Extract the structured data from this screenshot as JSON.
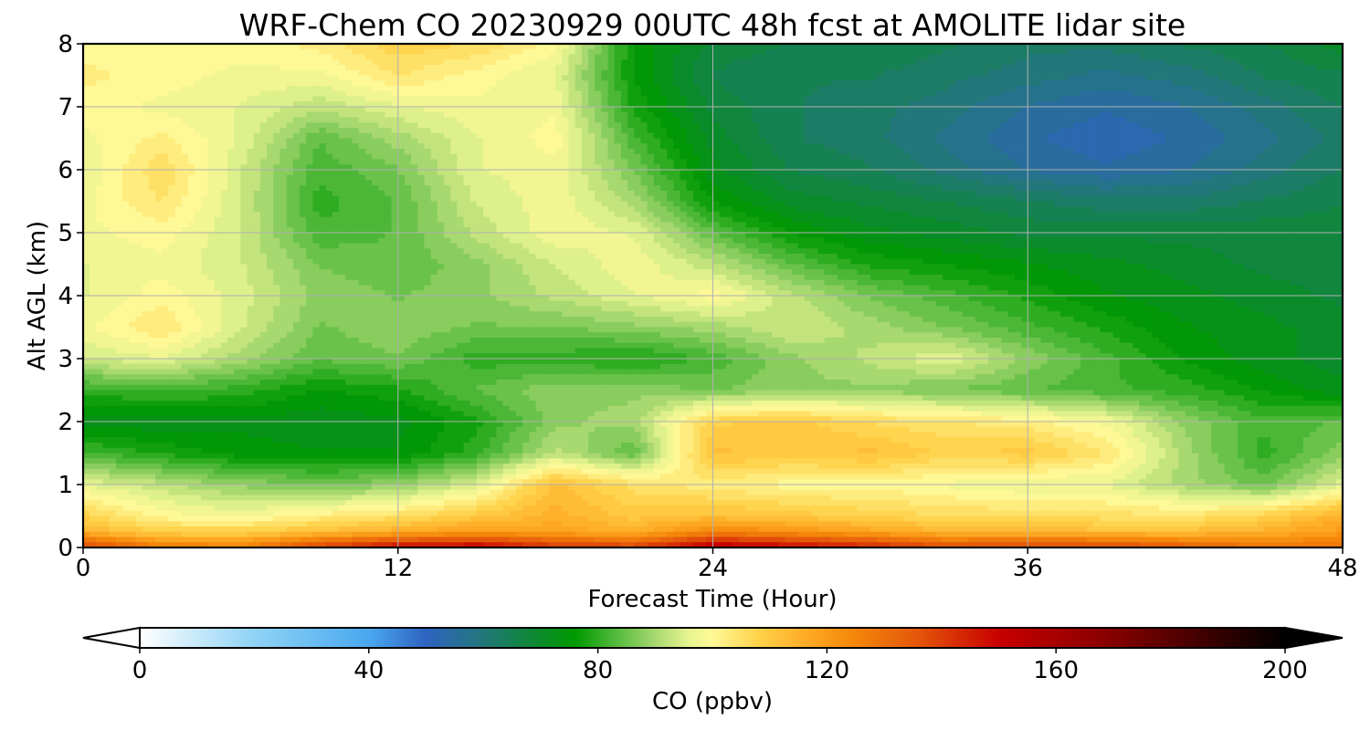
{
  "chart_data": {
    "type": "heatmap",
    "title": "WRF-Chem CO  20230929 00UTC 48h fcst at AMOLITE lidar site",
    "xlabel": "Forecast Time (Hour)",
    "ylabel": "Alt AGL (km)",
    "xlim": [
      0,
      48
    ],
    "ylim": [
      0,
      8
    ],
    "x_ticks": [
      "0",
      "12",
      "24",
      "36",
      "48"
    ],
    "y_ticks": [
      "0",
      "1",
      "2",
      "3",
      "4",
      "5",
      "6",
      "7",
      "8"
    ],
    "grid": true,
    "colorbar": {
      "label": "CO  (ppbv)",
      "range": [
        0,
        200
      ],
      "ticks": [
        "0",
        "40",
        "80",
        "120",
        "160",
        "200"
      ],
      "extend": "both",
      "colors": [
        {
          "value": 0,
          "color": "#ffffff"
        },
        {
          "value": 20,
          "color": "#8fd3f5"
        },
        {
          "value": 40,
          "color": "#4aa8ef"
        },
        {
          "value": 50,
          "color": "#2e63c0"
        },
        {
          "value": 60,
          "color": "#22777a"
        },
        {
          "value": 70,
          "color": "#0a8b2a"
        },
        {
          "value": 76,
          "color": "#009900"
        },
        {
          "value": 84,
          "color": "#5dbe44"
        },
        {
          "value": 90,
          "color": "#a8d870"
        },
        {
          "value": 96,
          "color": "#e8f590"
        },
        {
          "value": 100,
          "color": "#fff896"
        },
        {
          "value": 108,
          "color": "#ffd24a"
        },
        {
          "value": 116,
          "color": "#ffac28"
        },
        {
          "value": 124,
          "color": "#f58a0a"
        },
        {
          "value": 136,
          "color": "#e4560a"
        },
        {
          "value": 150,
          "color": "#c80000"
        },
        {
          "value": 168,
          "color": "#8c0000"
        },
        {
          "value": 185,
          "color": "#430000"
        },
        {
          "value": 200,
          "color": "#000000"
        }
      ]
    },
    "x": [
      0,
      3,
      6,
      9,
      12,
      15,
      18,
      21,
      24,
      27,
      30,
      33,
      36,
      39,
      42,
      45,
      48
    ],
    "y": [
      0.0,
      0.25,
      0.5,
      1.0,
      1.5,
      2.0,
      2.5,
      3.0,
      3.5,
      4.0,
      4.5,
      5.0,
      5.5,
      6.0,
      6.5,
      7.0,
      7.5,
      8.0
    ],
    "z": [
      [
        140,
        128,
        126,
        140,
        150,
        152,
        142,
        140,
        155,
        150,
        145,
        138,
        140,
        140,
        135,
        130,
        130
      ],
      [
        115,
        108,
        108,
        112,
        116,
        120,
        118,
        115,
        125,
        122,
        118,
        114,
        114,
        112,
        112,
        115,
        120
      ],
      [
        108,
        100,
        98,
        102,
        105,
        110,
        115,
        110,
        112,
        110,
        108,
        106,
        106,
        105,
        104,
        108,
        115
      ],
      [
        96,
        92,
        88,
        86,
        88,
        95,
        112,
        105,
        102,
        100,
        100,
        98,
        96,
        96,
        90,
        85,
        95
      ],
      [
        82,
        78,
        75,
        74,
        74,
        80,
        92,
        84,
        112,
        110,
        112,
        108,
        110,
        104,
        90,
        80,
        88
      ],
      [
        72,
        72,
        73,
        72,
        73,
        78,
        88,
        90,
        108,
        110,
        106,
        104,
        102,
        98,
        88,
        82,
        84
      ],
      [
        80,
        82,
        80,
        76,
        78,
        84,
        88,
        88,
        86,
        88,
        88,
        86,
        84,
        82,
        80,
        76,
        72
      ],
      [
        94,
        96,
        90,
        84,
        86,
        80,
        80,
        78,
        82,
        88,
        92,
        96,
        88,
        82,
        76,
        72,
        70
      ],
      [
        98,
        104,
        94,
        86,
        88,
        86,
        86,
        88,
        90,
        94,
        90,
        86,
        82,
        78,
        74,
        72,
        70
      ],
      [
        96,
        100,
        95,
        88,
        86,
        88,
        92,
        96,
        100,
        92,
        86,
        82,
        78,
        74,
        72,
        70,
        68
      ],
      [
        96,
        98,
        94,
        86,
        84,
        88,
        94,
        98,
        92,
        84,
        78,
        76,
        74,
        72,
        70,
        68,
        68
      ],
      [
        98,
        100,
        94,
        82,
        84,
        92,
        98,
        96,
        84,
        76,
        72,
        70,
        68,
        68,
        68,
        68,
        68
      ],
      [
        98,
        104,
        94,
        80,
        84,
        94,
        98,
        90,
        76,
        70,
        68,
        66,
        64,
        62,
        62,
        64,
        66
      ],
      [
        96,
        106,
        94,
        82,
        86,
        96,
        98,
        86,
        72,
        66,
        64,
        60,
        56,
        54,
        56,
        60,
        64
      ],
      [
        98,
        102,
        96,
        84,
        90,
        96,
        100,
        82,
        70,
        64,
        62,
        58,
        54,
        52,
        54,
        58,
        62
      ],
      [
        100,
        98,
        96,
        92,
        96,
        98,
        98,
        78,
        68,
        64,
        62,
        60,
        56,
        54,
        56,
        60,
        64
      ],
      [
        102,
        100,
        98,
        98,
        104,
        100,
        96,
        76,
        66,
        64,
        64,
        62,
        60,
        58,
        60,
        64,
        66
      ],
      [
        100,
        100,
        100,
        102,
        108,
        106,
        100,
        76,
        68,
        66,
        66,
        64,
        62,
        62,
        64,
        66,
        70
      ]
    ]
  }
}
